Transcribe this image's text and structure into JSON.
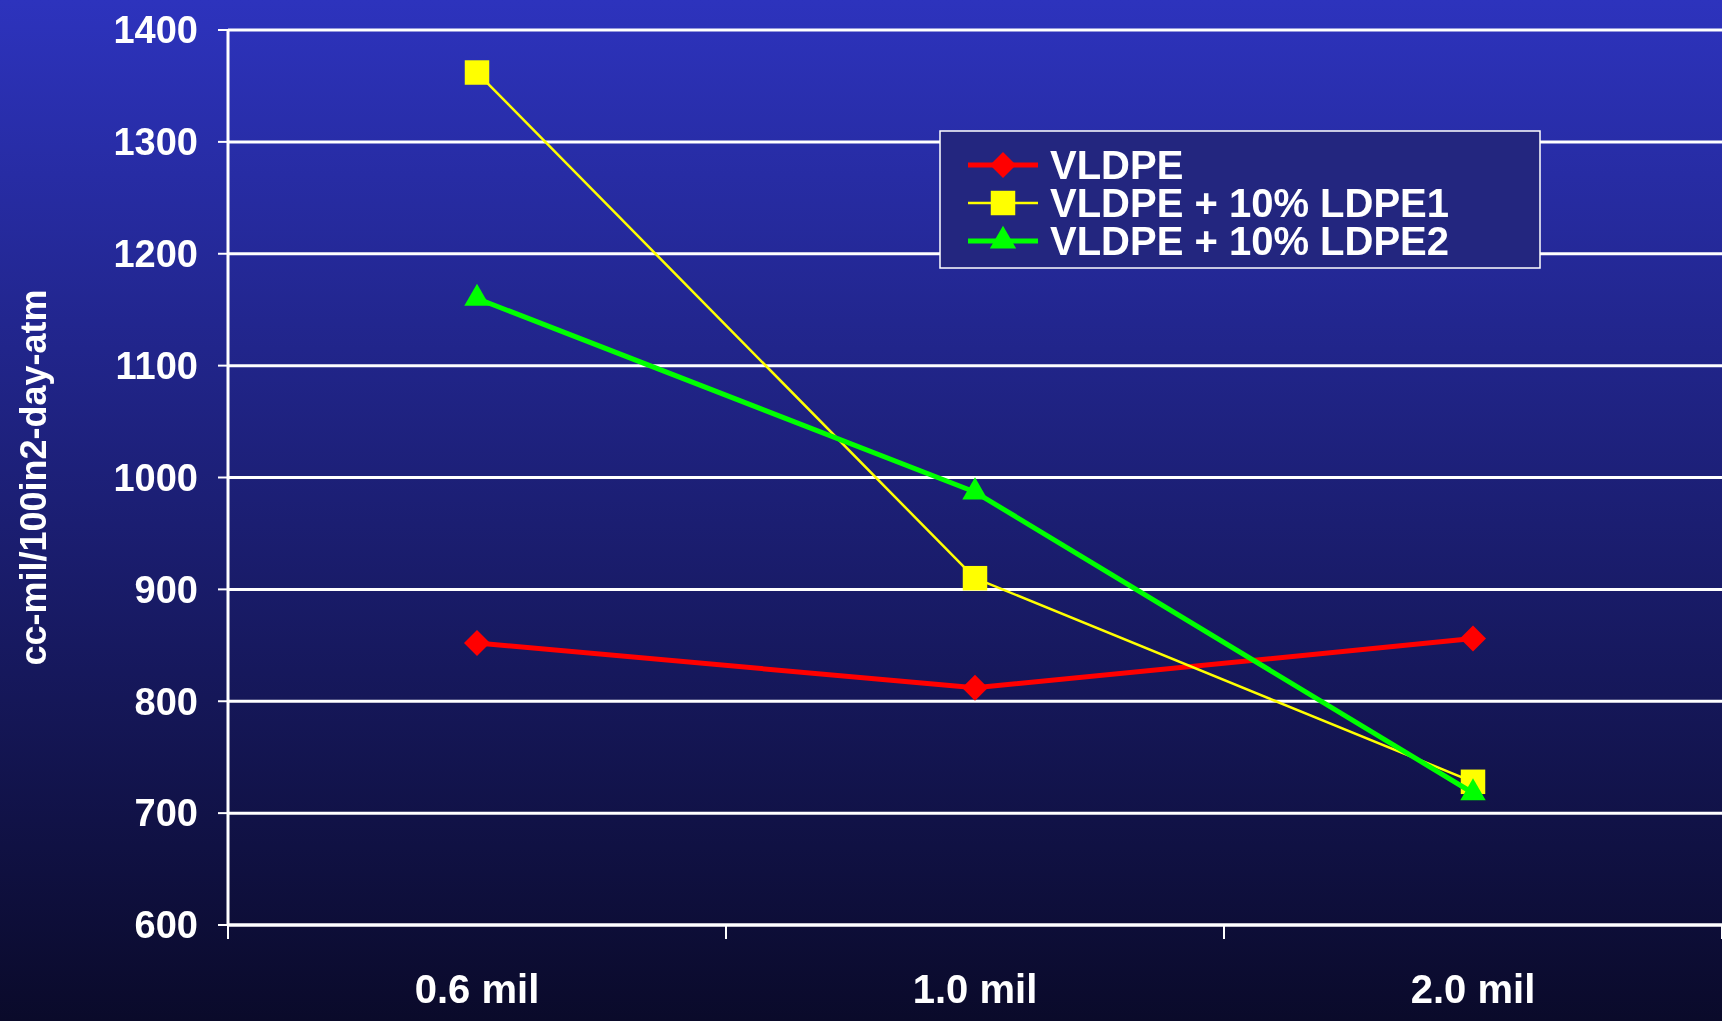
{
  "chart_data": {
    "type": "line",
    "ylabel": "cc-mil/100in2-day-atm",
    "categories": [
      "0.6 mil",
      "1.0 mil",
      "2.0 mil"
    ],
    "series": [
      {
        "name": "VLDPE",
        "color": "#ff0000",
        "values": [
          852,
          812,
          856
        ],
        "marker": "diamond"
      },
      {
        "name": "VLDPE + 10% LDPE1",
        "color": "#ffff00",
        "values": [
          1362,
          910,
          728
        ],
        "marker": "square"
      },
      {
        "name": "VLDPE + 10% LDPE2",
        "color": "#00ff00",
        "values": [
          1160,
          987,
          718
        ],
        "marker": "triangle"
      }
    ],
    "ylim": [
      600,
      1400
    ],
    "yticks": [
      600,
      700,
      800,
      900,
      1000,
      1100,
      1200,
      1300,
      1400
    ],
    "grid": "y",
    "legend": "top right"
  }
}
